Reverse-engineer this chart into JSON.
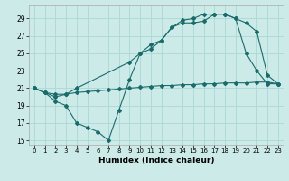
{
  "xlabel": "Humidex (Indice chaleur)",
  "bg_color": "#cceae8",
  "grid_color": "#aad8d5",
  "line_color": "#1a6b6b",
  "line1_x": [
    0,
    1,
    2,
    3,
    4,
    5,
    6,
    7,
    8,
    9,
    10,
    11,
    12,
    13,
    14,
    15,
    16,
    17,
    18,
    19,
    20,
    21,
    22,
    23
  ],
  "line1_y": [
    21,
    20.5,
    20.3,
    20.3,
    20.5,
    20.6,
    20.7,
    20.8,
    20.9,
    21.0,
    21.1,
    21.2,
    21.3,
    21.3,
    21.4,
    21.4,
    21.5,
    21.5,
    21.6,
    21.6,
    21.6,
    21.7,
    21.7,
    21.5
  ],
  "line2_x": [
    0,
    1,
    2,
    3,
    4,
    5,
    6,
    7,
    8,
    9,
    10,
    11,
    12,
    13,
    14,
    15,
    16,
    17,
    18,
    19,
    20,
    21,
    22,
    23
  ],
  "line2_y": [
    21,
    20.5,
    19.5,
    19.0,
    17.0,
    16.5,
    16.0,
    15.0,
    18.5,
    22.0,
    25.0,
    25.5,
    26.5,
    28.0,
    28.5,
    28.5,
    28.7,
    29.5,
    29.5,
    29.0,
    25.0,
    23.0,
    21.5,
    21.5
  ],
  "line3_x": [
    0,
    1,
    2,
    3,
    4,
    9,
    10,
    11,
    12,
    13,
    14,
    15,
    16,
    17,
    18,
    19,
    20,
    21,
    22,
    23
  ],
  "line3_y": [
    21,
    20.5,
    20.0,
    20.3,
    21.0,
    24.0,
    25.0,
    26.0,
    26.5,
    28.0,
    28.8,
    29.0,
    29.5,
    29.5,
    29.5,
    29.0,
    28.5,
    27.5,
    22.5,
    21.5
  ],
  "xlim": [
    -0.5,
    23.5
  ],
  "ylim": [
    14.5,
    30.5
  ],
  "yticks": [
    15,
    17,
    19,
    21,
    23,
    25,
    27,
    29
  ],
  "xticks": [
    0,
    1,
    2,
    3,
    4,
    5,
    6,
    7,
    8,
    9,
    10,
    11,
    12,
    13,
    14,
    15,
    16,
    17,
    18,
    19,
    20,
    21,
    22,
    23
  ]
}
